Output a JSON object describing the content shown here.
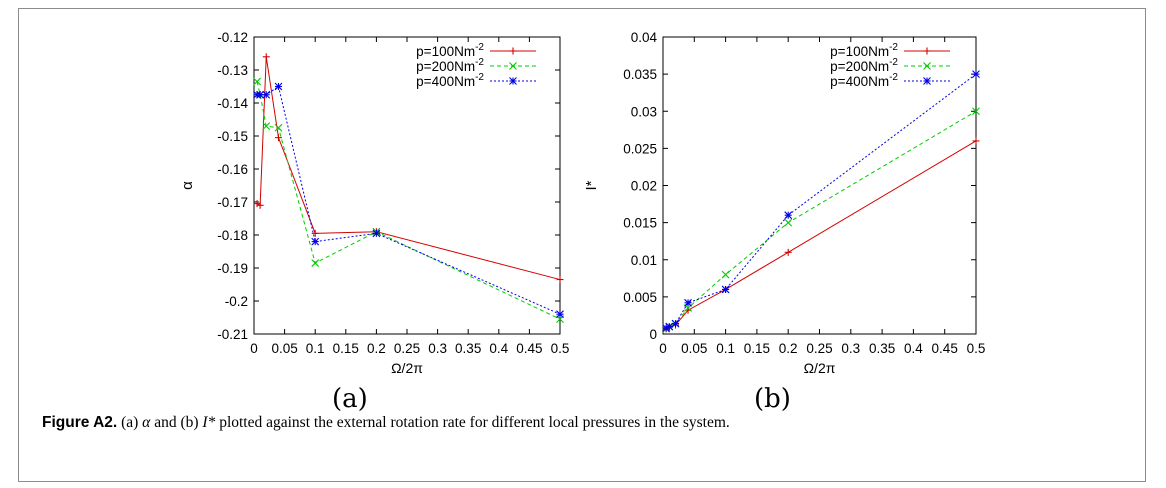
{
  "caption": {
    "figure_label": "Figure A2.",
    "part1": " (a) ",
    "alpha_symbol": "α",
    "part2": " and (b) ",
    "istar_symbol": "I*",
    "part3": " plotted against the external rotation rate for different local pressures in the system."
  },
  "colors": {
    "p100": "#d40000",
    "p200": "#00cc00",
    "p400": "#0000e6"
  },
  "chart_data": [
    {
      "type": "line",
      "panel_label": "(a)",
      "xlabel": "Ω/2π",
      "ylabel": "α",
      "xlim": [
        0,
        0.5
      ],
      "ylim": [
        -0.21,
        -0.12
      ],
      "xticks": [
        0,
        0.05,
        0.1,
        0.15,
        0.2,
        0.25,
        0.3,
        0.35,
        0.4,
        0.45,
        0.5
      ],
      "xtick_labels": [
        "0",
        "0.05",
        "0.1",
        "0.15",
        "0.2",
        "0.25",
        "0.3",
        "0.35",
        "0.4",
        "0.45",
        "0.5"
      ],
      "yticks": [
        -0.21,
        -0.2,
        -0.19,
        -0.18,
        -0.17,
        -0.16,
        -0.15,
        -0.14,
        -0.13,
        -0.12
      ],
      "ytick_labels": [
        "-0.21",
        "-0.2",
        "-0.19",
        "-0.18",
        "-0.17",
        "-0.16",
        "-0.15",
        "-0.14",
        "-0.13",
        "-0.12"
      ],
      "legend_position": "top-right",
      "series": [
        {
          "name": "p=100Nm",
          "exp": "-2",
          "color": "#d40000",
          "dash": "",
          "marker": "plus",
          "x": [
            0.005,
            0.01,
            0.02,
            0.04,
            0.1,
            0.2,
            0.5
          ],
          "y": [
            -0.1705,
            -0.171,
            -0.126,
            -0.1505,
            -0.1795,
            -0.179,
            -0.1935
          ]
        },
        {
          "name": "p=200Nm",
          "exp": "-2",
          "color": "#00cc00",
          "dash": "4,3",
          "marker": "cross",
          "x": [
            0.005,
            0.01,
            0.02,
            0.04,
            0.1,
            0.2,
            0.5
          ],
          "y": [
            -0.1335,
            -0.1375,
            -0.147,
            -0.1475,
            -0.1885,
            -0.179,
            -0.2055
          ]
        },
        {
          "name": "p=400Nm",
          "exp": "-2",
          "color": "#0000e6",
          "dash": "2,2",
          "marker": "star",
          "x": [
            0.005,
            0.01,
            0.02,
            0.04,
            0.1,
            0.2,
            0.5
          ],
          "y": [
            -0.1375,
            -0.1375,
            -0.1375,
            -0.135,
            -0.182,
            -0.1795,
            -0.204
          ]
        }
      ]
    },
    {
      "type": "line",
      "panel_label": "(b)",
      "xlabel": "Ω/2π",
      "ylabel": "I*",
      "xlim": [
        0,
        0.5
      ],
      "ylim": [
        0,
        0.04
      ],
      "xticks": [
        0,
        0.05,
        0.1,
        0.15,
        0.2,
        0.25,
        0.3,
        0.35,
        0.4,
        0.45,
        0.5
      ],
      "xtick_labels": [
        "0",
        "0.05",
        "0.1",
        "0.15",
        "0.2",
        "0.25",
        "0.3",
        "0.35",
        "0.4",
        "0.45",
        "0.5"
      ],
      "yticks": [
        0,
        0.005,
        0.01,
        0.015,
        0.02,
        0.025,
        0.03,
        0.035,
        0.04
      ],
      "ytick_labels": [
        "0",
        "0.005",
        "0.01",
        "0.015",
        "0.02",
        "0.025",
        "0.03",
        "0.035",
        "0.04"
      ],
      "legend_position": "top-right",
      "series": [
        {
          "name": "p=100Nm",
          "exp": "-2",
          "color": "#d40000",
          "dash": "",
          "marker": "plus",
          "x": [
            0.005,
            0.01,
            0.02,
            0.04,
            0.1,
            0.2,
            0.5
          ],
          "y": [
            0.0007,
            0.0009,
            0.0012,
            0.0032,
            0.006,
            0.011,
            0.026
          ]
        },
        {
          "name": "p=200Nm",
          "exp": "-2",
          "color": "#00cc00",
          "dash": "4,3",
          "marker": "cross",
          "x": [
            0.005,
            0.01,
            0.02,
            0.04,
            0.1,
            0.2,
            0.5
          ],
          "y": [
            0.0007,
            0.001,
            0.0014,
            0.0035,
            0.008,
            0.015,
            0.03
          ]
        },
        {
          "name": "p=400Nm",
          "exp": "-2",
          "color": "#0000e6",
          "dash": "2,2",
          "marker": "star",
          "x": [
            0.005,
            0.01,
            0.02,
            0.04,
            0.1,
            0.2,
            0.5
          ],
          "y": [
            0.0008,
            0.001,
            0.0014,
            0.0042,
            0.006,
            0.016,
            0.035
          ]
        }
      ]
    }
  ]
}
